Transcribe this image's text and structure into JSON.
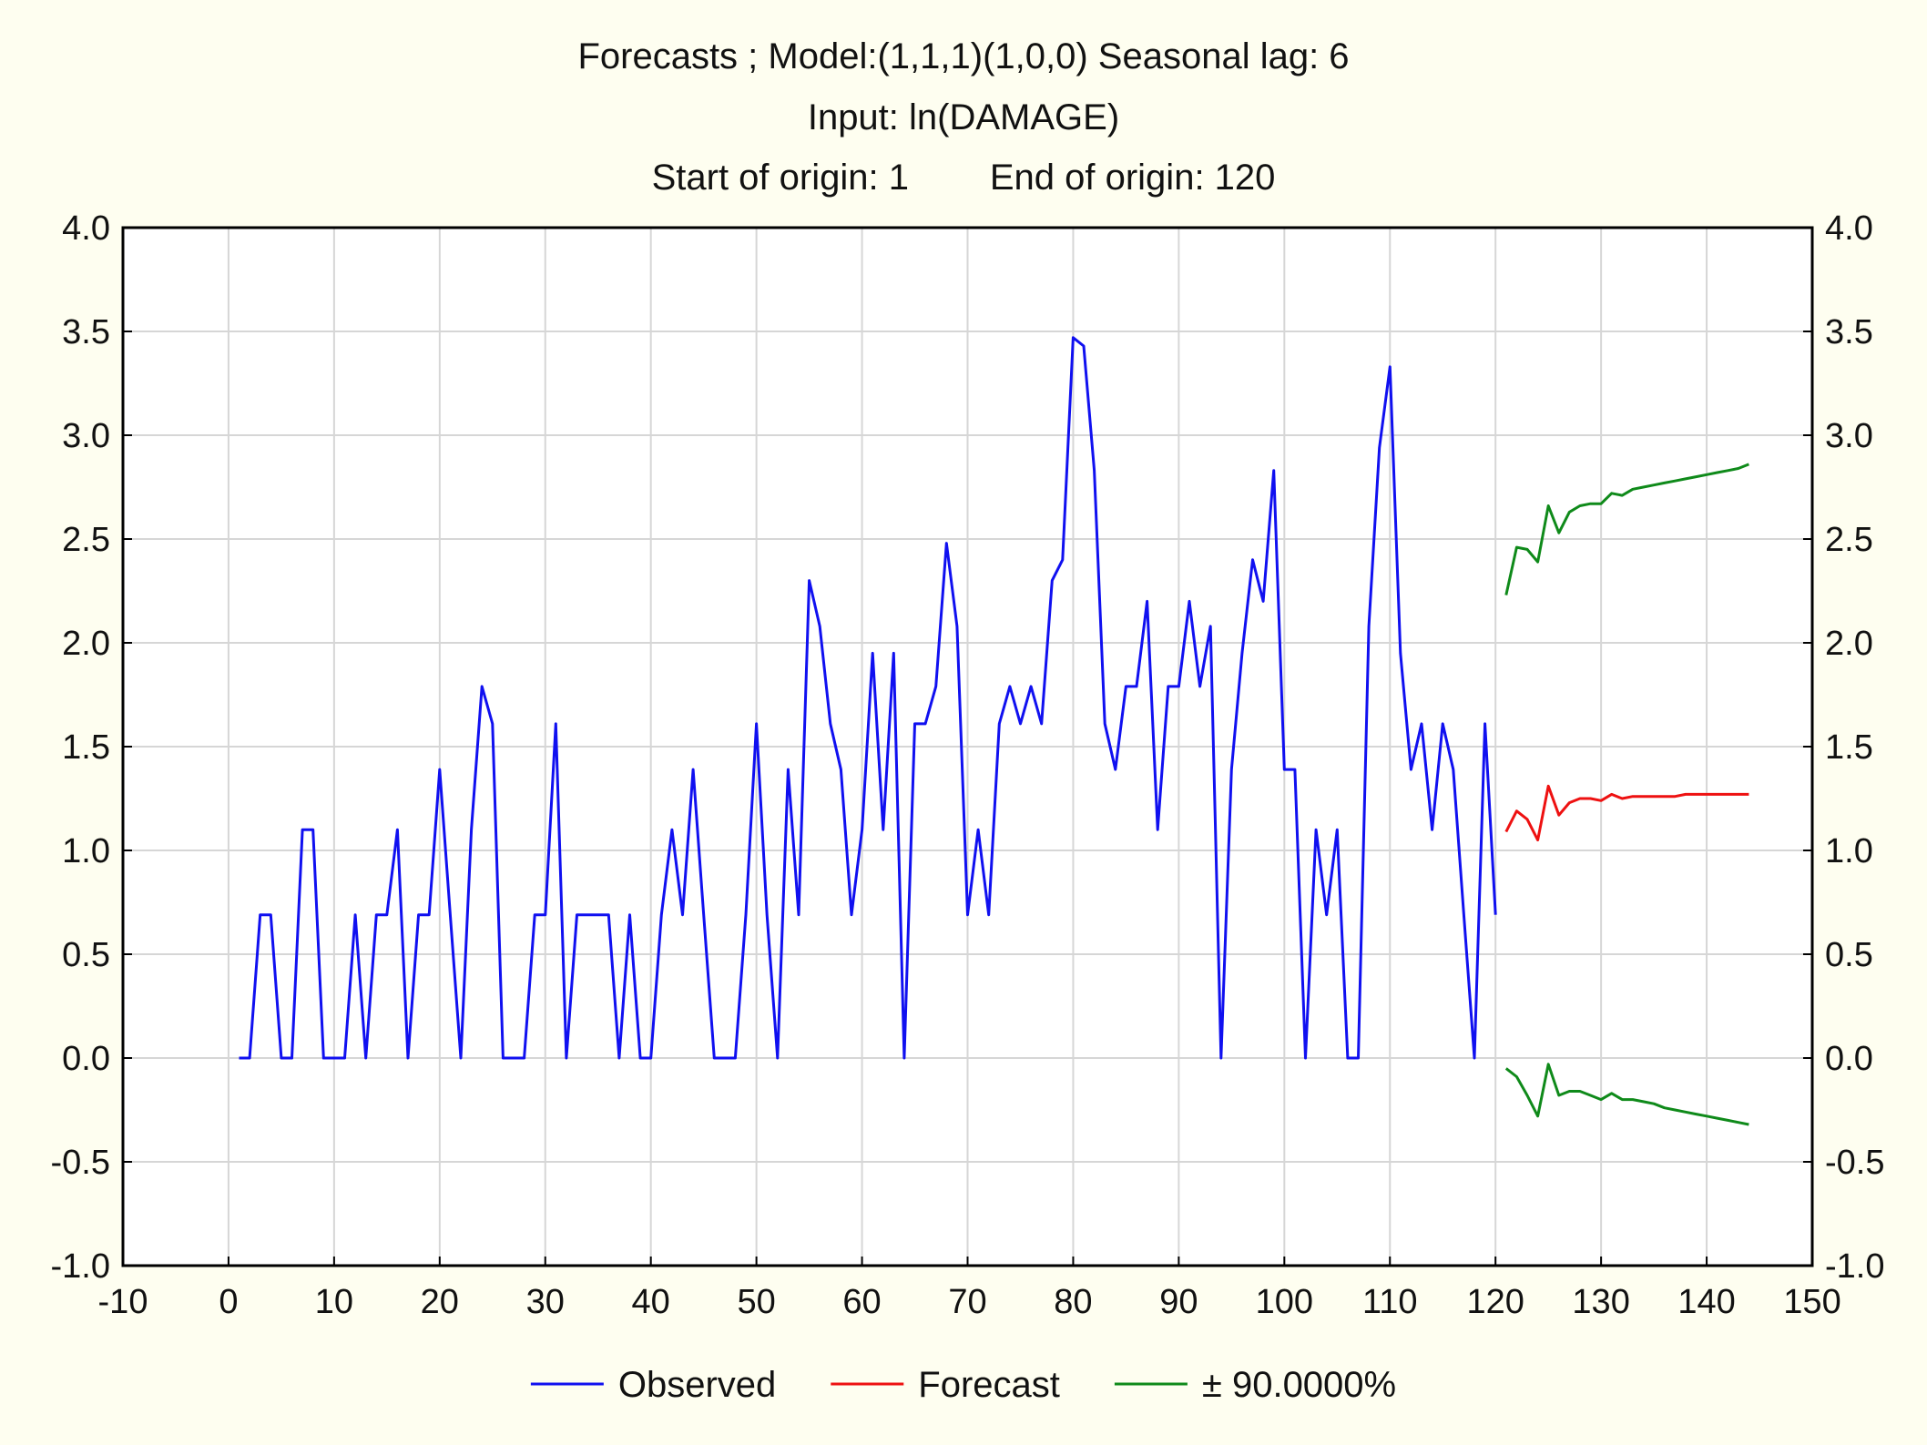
{
  "chart_data": {
    "type": "line",
    "title": [
      "Forecasts ; Model:(1,1,1)(1,0,0) Seasonal lag: 6",
      "Input: ln(DAMAGE)",
      "Start of origin: 1        End of origin: 120"
    ],
    "xlim": [
      -10,
      150
    ],
    "ylim": [
      -1.0,
      4.0
    ],
    "x_ticks": [
      "-10",
      "0",
      "10",
      "20",
      "30",
      "40",
      "50",
      "60",
      "70",
      "80",
      "90",
      "100",
      "110",
      "120",
      "130",
      "140",
      "150"
    ],
    "y_ticks": [
      "4.0",
      "3.5",
      "3.0",
      "2.5",
      "2.0",
      "1.5",
      "1.0",
      "0.5",
      "0.0",
      "-0.5",
      "-1.0"
    ],
    "grid": true,
    "legend_position": "bottom",
    "series": [
      {
        "name": "Observed",
        "color": "#1010f0",
        "x": [
          1,
          2,
          3,
          4,
          5,
          6,
          7,
          8,
          9,
          10,
          11,
          12,
          13,
          14,
          15,
          16,
          17,
          18,
          19,
          20,
          21,
          22,
          23,
          24,
          25,
          26,
          27,
          28,
          29,
          30,
          31,
          32,
          33,
          34,
          35,
          36,
          37,
          38,
          39,
          40,
          41,
          42,
          43,
          44,
          45,
          46,
          47,
          48,
          49,
          50,
          51,
          52,
          53,
          54,
          55,
          56,
          57,
          58,
          59,
          60,
          61,
          62,
          63,
          64,
          65,
          66,
          67,
          68,
          69,
          70,
          71,
          72,
          73,
          74,
          75,
          76,
          77,
          78,
          79,
          80,
          81,
          82,
          83,
          84,
          85,
          86,
          87,
          88,
          89,
          90,
          91,
          92,
          93,
          94,
          95,
          96,
          97,
          98,
          99,
          100,
          101,
          102,
          103,
          104,
          105,
          106,
          107,
          108,
          109,
          110,
          111,
          112,
          113,
          114,
          115,
          116,
          117,
          118,
          119,
          120
        ],
        "values": [
          0,
          0,
          0.69,
          0.69,
          0,
          0,
          1.1,
          1.1,
          0,
          0,
          0,
          0.69,
          0,
          0.69,
          0.69,
          1.1,
          0,
          0.69,
          0.69,
          1.39,
          0.69,
          0,
          1.1,
          1.79,
          1.61,
          0,
          0,
          0,
          0.69,
          0.69,
          1.61,
          0,
          0.69,
          0.69,
          0.69,
          0.69,
          0,
          0.69,
          0,
          0,
          0.69,
          1.1,
          0.69,
          1.39,
          0.69,
          0,
          0,
          0,
          0.69,
          1.61,
          0.69,
          0,
          1.39,
          0.69,
          2.3,
          2.08,
          1.61,
          1.39,
          0.69,
          1.1,
          1.95,
          1.1,
          1.95,
          0,
          1.61,
          1.61,
          1.79,
          2.48,
          2.08,
          0.69,
          1.1,
          0.69,
          1.61,
          1.79,
          1.61,
          1.79,
          1.61,
          2.3,
          2.4,
          3.47,
          3.43,
          2.83,
          1.61,
          1.39,
          1.79,
          1.79,
          2.2,
          1.1,
          1.79,
          1.79,
          2.2,
          1.79,
          2.08,
          0,
          1.39,
          1.95,
          2.4,
          2.2,
          2.83,
          1.39,
          1.39,
          0,
          1.1,
          0.69,
          1.1,
          0,
          0,
          2.08,
          2.94,
          3.33,
          1.95,
          1.39,
          1.61,
          1.1,
          1.61,
          1.39,
          0.69,
          0,
          1.61,
          0.69
        ]
      },
      {
        "name": "Forecast",
        "color": "#ee1111",
        "x": [
          121,
          122,
          123,
          124,
          125,
          126,
          127,
          128,
          129,
          130,
          131,
          132,
          133,
          134,
          135,
          136,
          137,
          138,
          139,
          140,
          141,
          142,
          143,
          144
        ],
        "values": [
          1.09,
          1.19,
          1.15,
          1.05,
          1.31,
          1.17,
          1.23,
          1.25,
          1.25,
          1.24,
          1.27,
          1.25,
          1.26,
          1.26,
          1.26,
          1.26,
          1.26,
          1.27,
          1.27,
          1.27,
          1.27,
          1.27,
          1.27,
          1.27
        ]
      },
      {
        "name": "± 90.0000%",
        "color": "#0f8a1a",
        "upper_x": [
          121,
          122,
          123,
          124,
          125,
          126,
          127,
          128,
          129,
          130,
          131,
          132,
          133,
          134,
          135,
          136,
          137,
          138,
          139,
          140,
          141,
          142,
          143,
          144
        ],
        "upper": [
          2.23,
          2.46,
          2.45,
          2.39,
          2.66,
          2.53,
          2.63,
          2.66,
          2.67,
          2.67,
          2.72,
          2.71,
          2.74,
          2.75,
          2.76,
          2.77,
          2.78,
          2.79,
          2.8,
          2.81,
          2.82,
          2.83,
          2.84,
          2.86
        ],
        "lower_x": [
          121,
          122,
          123,
          124,
          125,
          126,
          127,
          128,
          129,
          130,
          131,
          132,
          133,
          134,
          135,
          136,
          137,
          138,
          139,
          140,
          141,
          142,
          143,
          144
        ],
        "lower": [
          -0.05,
          -0.09,
          -0.18,
          -0.28,
          -0.03,
          -0.18,
          -0.16,
          -0.16,
          -0.18,
          -0.2,
          -0.17,
          -0.2,
          -0.2,
          -0.21,
          -0.22,
          -0.24,
          -0.25,
          -0.26,
          -0.27,
          -0.28,
          -0.29,
          -0.3,
          -0.31,
          -0.32
        ]
      }
    ]
  }
}
